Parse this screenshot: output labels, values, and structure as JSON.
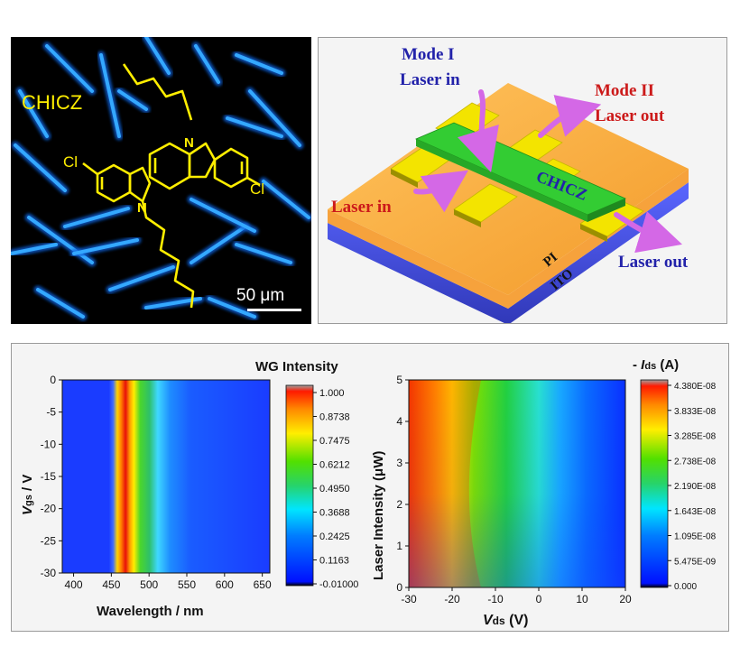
{
  "micrograph": {
    "compound_label": "CHICZ",
    "atom_cl_left": "Cl",
    "atom_cl_right": "Cl",
    "atom_n_top": "N",
    "atom_n_bottom": "N",
    "scale_label": "50 μm",
    "colors": {
      "crystal": "#1a8cff",
      "molecule": "#ffee00",
      "background": "#000000"
    }
  },
  "device": {
    "mode1_title": "Mode I",
    "mode1_in": "Laser in",
    "mode2_title": "Mode II",
    "mode2_out": "Laser out",
    "laser_in_left": "Laser in",
    "laser_out_right": "Laser out",
    "crystal_label": "CHICZ",
    "layer_pi": "PI",
    "layer_ito": "ITO",
    "colors": {
      "pi": "#f7a93a",
      "ito": "#4650dc",
      "electrode": "#f3e400",
      "crystal": "#2ec52e",
      "arrow": "#d468e6"
    }
  },
  "chart_data": [
    {
      "type": "heatmap",
      "title": "WG Intensity",
      "xlabel": "Wavelength / nm",
      "ylabel_main": "V",
      "ylabel_sub": "gs",
      "ylabel_unit": " / V",
      "x_ticks": [
        "400",
        "450",
        "500",
        "550",
        "600",
        "650"
      ],
      "y_ticks": [
        "0",
        "-5",
        "-10",
        "-15",
        "-20",
        "-25",
        "-30"
      ],
      "xlim": [
        385,
        660
      ],
      "ylim": [
        -30,
        0
      ],
      "colorbar_ticks": [
        "1.000",
        "0.8738",
        "0.7475",
        "0.6212",
        "0.4950",
        "0.3688",
        "0.2425",
        "0.1163",
        "-0.01000"
      ],
      "peak_wavelength": 485,
      "emission_band": [
        450,
        545
      ]
    },
    {
      "type": "heatmap",
      "title_prefix": "- ",
      "title_italic": "I",
      "title_sub": "ds",
      "title_unit": " (A)",
      "xlabel_main": "V",
      "xlabel_sub": "ds",
      "xlabel_unit": "  (V)",
      "ylabel": "Laser Intensity (μW)",
      "x_ticks": [
        "-30",
        "-20",
        "-10",
        "0",
        "10",
        "20"
      ],
      "y_ticks": [
        "0",
        "1",
        "2",
        "3",
        "4",
        "5"
      ],
      "xlim": [
        -30,
        20
      ],
      "ylim": [
        0,
        5
      ],
      "colorbar_ticks": [
        "4.380E-08",
        "3.833E-08",
        "3.285E-08",
        "2.738E-08",
        "2.190E-08",
        "1.643E-08",
        "1.095E-08",
        "5.475E-09",
        "0.000"
      ]
    }
  ]
}
